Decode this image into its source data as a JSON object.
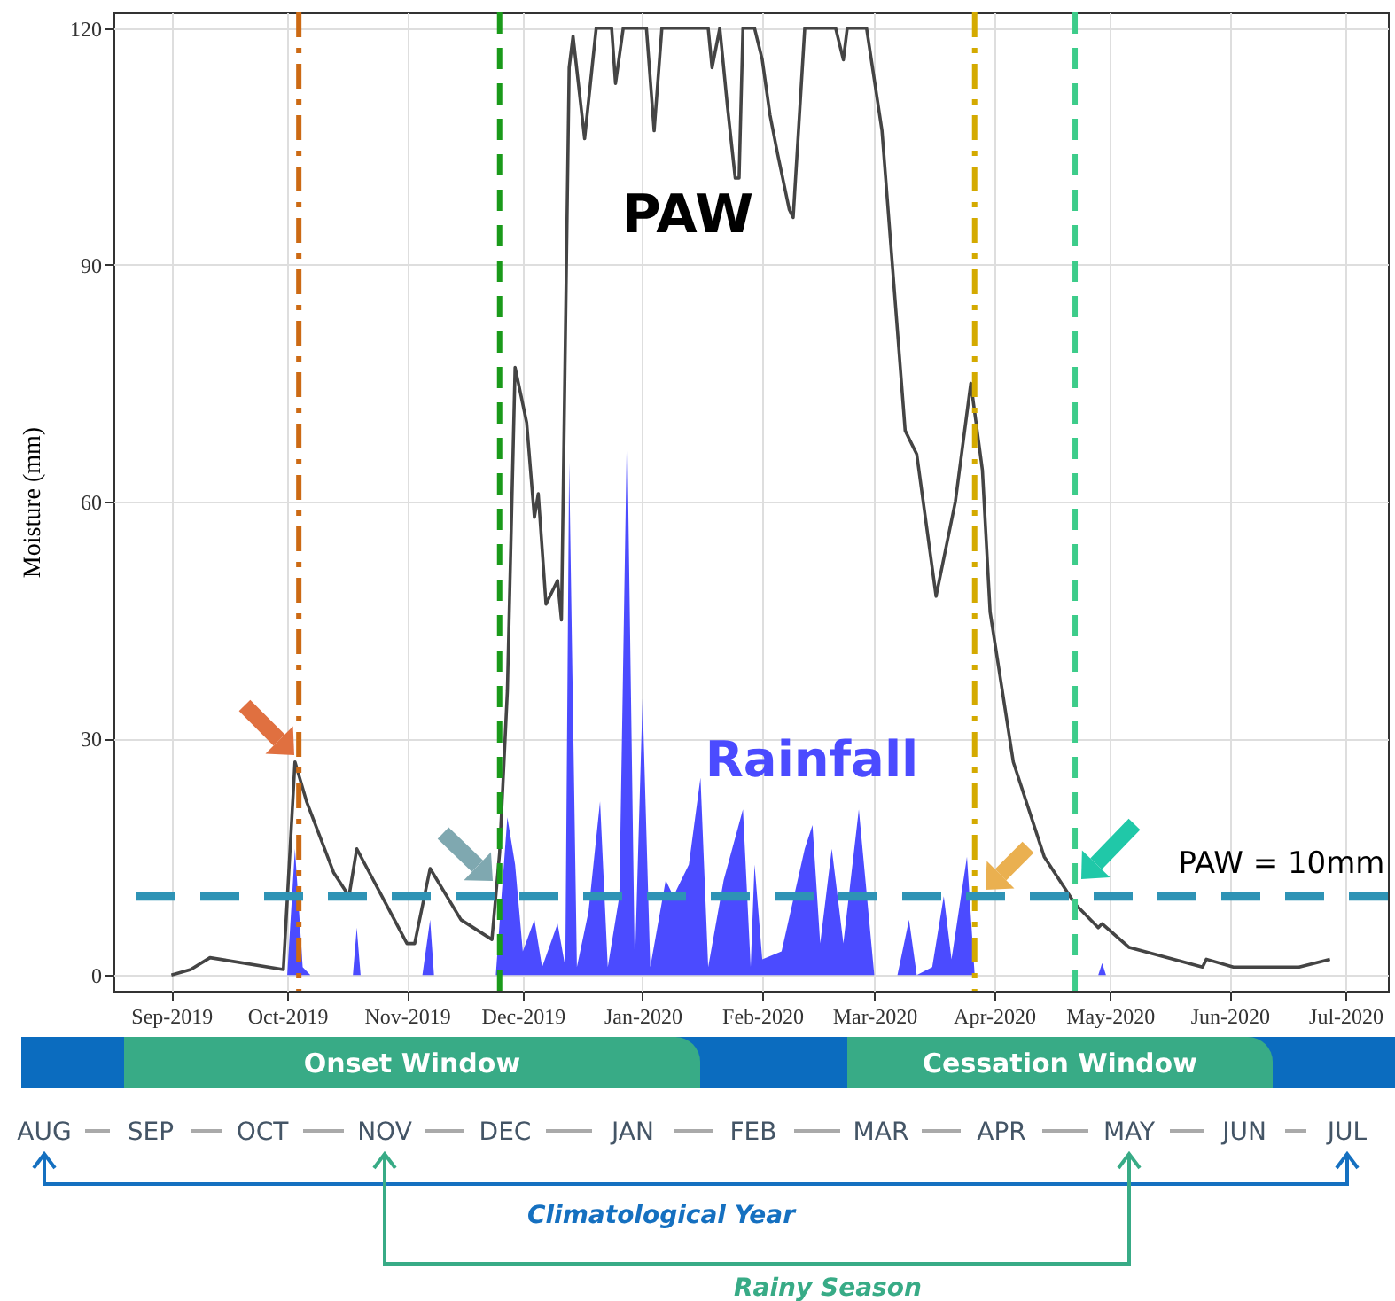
{
  "chart_data": {
    "type": "line",
    "ylabel": "Moisture (mm)",
    "xlim": [
      "2019-08-17",
      "2020-07-12"
    ],
    "ylim": [
      -2,
      122
    ],
    "yticks": [
      0,
      30,
      60,
      90,
      120
    ],
    "xticks": [
      {
        "value": "2019-09-01",
        "label": "Sep-2019"
      },
      {
        "value": "2019-10-01",
        "label": "Oct-2019"
      },
      {
        "value": "2019-11-01",
        "label": "Nov-2019"
      },
      {
        "value": "2019-12-01",
        "label": "Dec-2019"
      },
      {
        "value": "2020-01-01",
        "label": "Jan-2020"
      },
      {
        "value": "2020-02-01",
        "label": "Feb-2020"
      },
      {
        "value": "2020-03-01",
        "label": "Mar-2020"
      },
      {
        "value": "2020-04-01",
        "label": "Apr-2020"
      },
      {
        "value": "2020-05-01",
        "label": "May-2020"
      },
      {
        "value": "2020-06-01",
        "label": "Jun-2020"
      },
      {
        "value": "2020-07-01",
        "label": "Jul-2020"
      }
    ],
    "grid": true,
    "series": [
      {
        "name": "Rainfall",
        "type": "area",
        "color": "#4b4bff",
        "x": [
          "2019-09-01",
          "2019-10-01",
          "2019-10-03",
          "2019-10-05",
          "2019-10-07",
          "2019-10-18",
          "2019-10-19",
          "2019-10-20",
          "2019-11-05",
          "2019-11-07",
          "2019-11-08",
          "2019-11-24",
          "2019-11-27",
          "2019-11-29",
          "2019-12-01",
          "2019-12-04",
          "2019-12-06",
          "2019-12-10",
          "2019-12-12",
          "2019-12-13",
          "2019-12-15",
          "2019-12-18",
          "2019-12-21",
          "2019-12-23",
          "2019-12-26",
          "2019-12-28",
          "2019-12-30",
          "2020-01-01",
          "2020-01-03",
          "2020-01-07",
          "2020-01-09",
          "2020-01-13",
          "2020-01-16",
          "2020-01-18",
          "2020-01-22",
          "2020-01-27",
          "2020-01-29",
          "2020-01-30",
          "2020-02-01",
          "2020-02-06",
          "2020-02-12",
          "2020-02-14",
          "2020-02-16",
          "2020-02-19",
          "2020-02-22",
          "2020-02-26",
          "2020-03-01",
          "2020-03-07",
          "2020-03-10",
          "2020-03-12",
          "2020-03-16",
          "2020-03-19",
          "2020-03-21",
          "2020-03-25",
          "2020-03-27",
          "2020-04-28",
          "2020-04-29",
          "2020-04-30",
          "2020-06-27"
        ],
        "values": [
          0,
          0,
          16,
          1,
          0,
          0,
          6,
          0,
          0,
          7,
          0,
          0,
          20,
          14,
          3,
          7,
          1,
          6.5,
          1,
          65,
          1,
          8,
          22,
          1,
          10,
          70,
          1,
          35,
          1,
          12,
          10,
          14,
          25,
          1,
          12,
          21,
          1,
          14,
          2,
          3,
          16,
          19,
          4,
          16,
          4,
          21,
          0,
          0,
          7,
          0,
          1,
          10,
          2,
          15,
          0,
          0,
          1.5,
          0,
          0
        ]
      },
      {
        "name": "PAW",
        "color": "#444444",
        "x": [
          "2019-09-01",
          "2019-09-06",
          "2019-09-11",
          "2019-09-30",
          "2019-10-03",
          "2019-10-06",
          "2019-10-13",
          "2019-10-17",
          "2019-10-19",
          "2019-11-01",
          "2019-11-03",
          "2019-11-07",
          "2019-11-15",
          "2019-11-23",
          "2019-11-25",
          "2019-11-27",
          "2019-11-29",
          "2019-12-02",
          "2019-12-04",
          "2019-12-05",
          "2019-12-07",
          "2019-12-10",
          "2019-12-11",
          "2019-12-13",
          "2019-12-14",
          "2019-12-17",
          "2019-12-20",
          "2019-12-24",
          "2019-12-25",
          "2019-12-27",
          "2020-01-02",
          "2020-01-04",
          "2020-01-06",
          "2020-01-18",
          "2020-01-19",
          "2020-01-21",
          "2020-01-23",
          "2020-01-25",
          "2020-01-26",
          "2020-01-27",
          "2020-01-30",
          "2020-02-01",
          "2020-02-03",
          "2020-02-05",
          "2020-02-08",
          "2020-02-09",
          "2020-02-12",
          "2020-02-20",
          "2020-02-22",
          "2020-02-23",
          "2020-02-28",
          "2020-03-03",
          "2020-03-09",
          "2020-03-12",
          "2020-03-17",
          "2020-03-22",
          "2020-03-26",
          "2020-03-29",
          "2020-03-31",
          "2020-04-06",
          "2020-04-14",
          "2020-04-22",
          "2020-04-28",
          "2020-04-29",
          "2020-05-06",
          "2020-05-25",
          "2020-05-26",
          "2020-06-02",
          "2020-06-19",
          "2020-06-27"
        ],
        "values": [
          0,
          0.7,
          2.2,
          0.7,
          27,
          22,
          13,
          10,
          16,
          4,
          4,
          13.5,
          7,
          4.5,
          15.5,
          36,
          77,
          70,
          58,
          61,
          47,
          50,
          45,
          115,
          119,
          106,
          120,
          120,
          113,
          120,
          120,
          107,
          120,
          120,
          115,
          120,
          110,
          101,
          101,
          120,
          120,
          116,
          109,
          104,
          97,
          96,
          120,
          120,
          116,
          120,
          120,
          107,
          69,
          66,
          48,
          60,
          75,
          64,
          46,
          27,
          15,
          9,
          6,
          6.5,
          3.5,
          1,
          2,
          1,
          1,
          2
        ]
      }
    ],
    "ref_lines": [
      {
        "axis": "x",
        "value": "2019-10-04",
        "color": "#cc6a14",
        "line_style": "dashdot"
      },
      {
        "axis": "x",
        "value": "2019-11-25",
        "color": "#1a9a1a",
        "line_style": "dashed"
      },
      {
        "axis": "x",
        "value": "2020-03-27",
        "color": "#d4aa00",
        "line_style": "dashdot"
      },
      {
        "axis": "x",
        "value": "2020-04-22",
        "color": "#3dcc8a",
        "line_style": "dashed"
      },
      {
        "axis": "y",
        "value": 10,
        "label": "PAW = 10mm",
        "color": "#2e93b5",
        "line_style": "dashed"
      }
    ],
    "annotations": [
      "Onset Window",
      "Cessation Window",
      "AUG",
      "SEP",
      "OCT",
      "NOV",
      "DEC",
      "JAN",
      "FEB",
      "MAR",
      "APR",
      "MAY",
      "JUN",
      "JUL",
      "Climatological Year",
      "Rainy Season"
    ]
  }
}
